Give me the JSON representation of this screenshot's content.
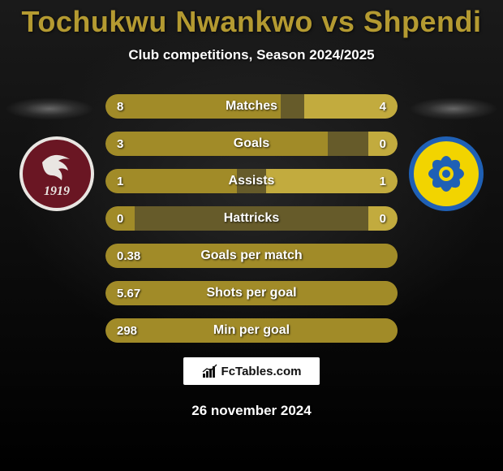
{
  "title": "Tochukwu Nwankwo vs Shpendi",
  "title_color": "#b49a31",
  "subtitle": "Club competitions, Season 2024/2025",
  "date": "26 november 2024",
  "brand": {
    "icon": "fctables-icon",
    "text": "FcTables.com"
  },
  "colors": {
    "left_fill": "#a18b28",
    "right_fill": "#c2ab3e",
    "track": "#665b2a",
    "background_top": "#1a1a1a",
    "background_bottom": "#000000"
  },
  "crest_left": {
    "bg": "#6a1623",
    "border": "#e9e6e2",
    "text": "1919",
    "text_color": "#e9e6e2"
  },
  "crest_right": {
    "bg": "#1f60b5",
    "inner": "#f2d400",
    "accent": "#1f60b5"
  },
  "bar_style": {
    "height": 30,
    "gap": 16,
    "radius": 15,
    "label_fontsize": 16,
    "value_fontsize": 15
  },
  "rows": [
    {
      "label": "Matches",
      "left": "8",
      "right": "4",
      "left_pct": 60,
      "right_pct": 32
    },
    {
      "label": "Goals",
      "left": "3",
      "right": "0",
      "left_pct": 76,
      "right_pct": 10
    },
    {
      "label": "Assists",
      "left": "1",
      "right": "1",
      "left_pct": 45,
      "right_pct": 45
    },
    {
      "label": "Hattricks",
      "left": "0",
      "right": "0",
      "left_pct": 10,
      "right_pct": 10
    },
    {
      "label": "Goals per match",
      "left": "0.38",
      "right": "",
      "left_pct": 100,
      "right_pct": 0
    },
    {
      "label": "Shots per goal",
      "left": "5.67",
      "right": "",
      "left_pct": 100,
      "right_pct": 0
    },
    {
      "label": "Min per goal",
      "left": "298",
      "right": "",
      "left_pct": 100,
      "right_pct": 0
    }
  ]
}
